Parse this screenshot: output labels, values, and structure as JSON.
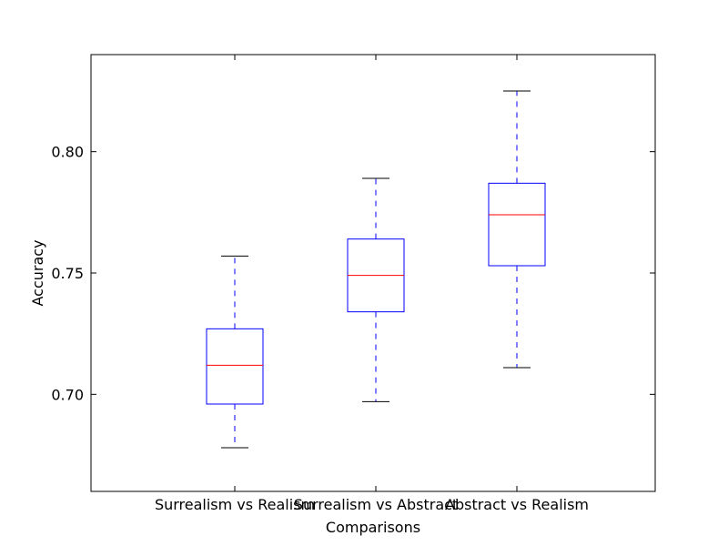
{
  "chart_data": {
    "type": "boxplot",
    "title": "",
    "xlabel": "Comparisons",
    "ylabel": "Accuracy",
    "ylim": [
      0.66,
      0.84
    ],
    "yticks": [
      0.7,
      0.75,
      0.8
    ],
    "ytick_labels": [
      "0.70",
      "0.75",
      "0.80"
    ],
    "categories": [
      "Surrealism vs Realism",
      "Surrealism vs Abstract",
      "Abstract vs Realism"
    ],
    "boxes": [
      {
        "name": "Surrealism vs Realism",
        "whisker_low": 0.678,
        "q1": 0.696,
        "median": 0.712,
        "q3": 0.727,
        "whisker_high": 0.757
      },
      {
        "name": "Surrealism vs Abstract",
        "whisker_low": 0.697,
        "q1": 0.734,
        "median": 0.749,
        "q3": 0.764,
        "whisker_high": 0.789
      },
      {
        "name": "Abstract vs Realism",
        "whisker_low": 0.711,
        "q1": 0.753,
        "median": 0.774,
        "q3": 0.787,
        "whisker_high": 0.825
      }
    ],
    "colors": {
      "box": "#0000ff",
      "whisker": "#0000ff",
      "cap": "#000000",
      "median": "#ff0000",
      "axes": "#000000"
    }
  }
}
